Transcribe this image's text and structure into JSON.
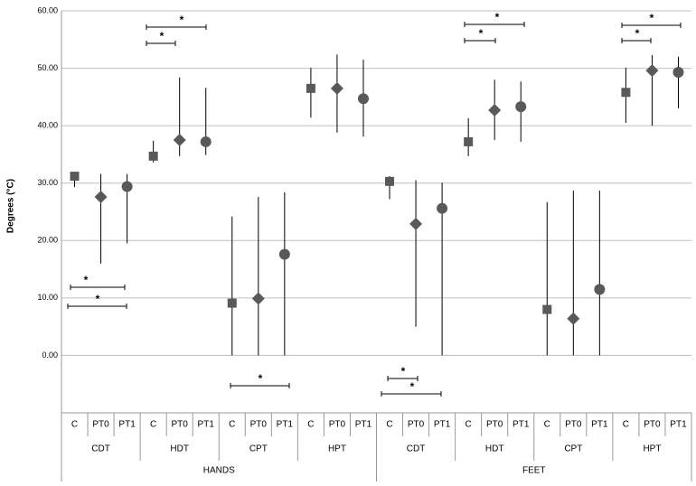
{
  "chart_data": {
    "type": "dot-range",
    "y_label": "Degrees (°C)",
    "categories": [
      "C",
      "PT0",
      "PT1",
      "C",
      "PT0",
      "PT1",
      "C",
      "PT0",
      "PT1",
      "C",
      "PT0",
      "PT1",
      "C",
      "PT0",
      "PT1",
      "C",
      "PT0",
      "PT1",
      "C",
      "PT0",
      "PT1",
      "C",
      "PT0",
      "PT1"
    ],
    "groups": [
      "CDT",
      "HDT",
      "CPT",
      "HPT",
      "CDT",
      "HDT",
      "CPT",
      "HPT"
    ],
    "regions": [
      "HANDS",
      "FEET"
    ],
    "values": [
      31.2,
      27.6,
      29.4,
      34.7,
      37.5,
      37.2,
      9.1,
      9.9,
      17.6,
      46.5,
      46.5,
      44.7,
      30.3,
      22.9,
      25.6,
      37.2,
      42.7,
      43.3,
      8.0,
      6.4,
      11.5,
      45.8,
      49.6,
      49.3
    ],
    "low": [
      29.3,
      16.0,
      19.5,
      33.6,
      34.7,
      34.9,
      0,
      0,
      0,
      41.4,
      38.8,
      38.1,
      27.2,
      5.0,
      0,
      34.7,
      37.5,
      37.2,
      0,
      0,
      0,
      40.5,
      40.0,
      43.0
    ],
    "high": [
      32.0,
      31.6,
      31.6,
      37.4,
      48.4,
      46.6,
      24.2,
      27.6,
      28.4,
      50.1,
      52.4,
      51.5,
      31.2,
      30.5,
      30.1,
      41.3,
      48.0,
      47.7,
      26.7,
      28.7,
      28.7,
      50.1,
      52.3,
      52.0
    ],
    "markers": [
      "square",
      "diamond",
      "circle"
    ],
    "color": "#595959",
    "ylim": [
      -10,
      60
    ],
    "yticks": [
      {
        "value": 0,
        "label": "0.00"
      },
      {
        "value": 10,
        "label": "10.00"
      },
      {
        "value": 20,
        "label": "20.00"
      },
      {
        "value": 30,
        "label": "30.00"
      },
      {
        "value": 40,
        "label": "40.00"
      },
      {
        "value": 50,
        "label": "50.00"
      },
      {
        "value": 60,
        "label": "60.00"
      }
    ],
    "grid": true,
    "annotations": [
      "*",
      "*",
      "*",
      "*",
      "*",
      "*",
      "*",
      "*",
      "*",
      "*",
      "*"
    ]
  }
}
